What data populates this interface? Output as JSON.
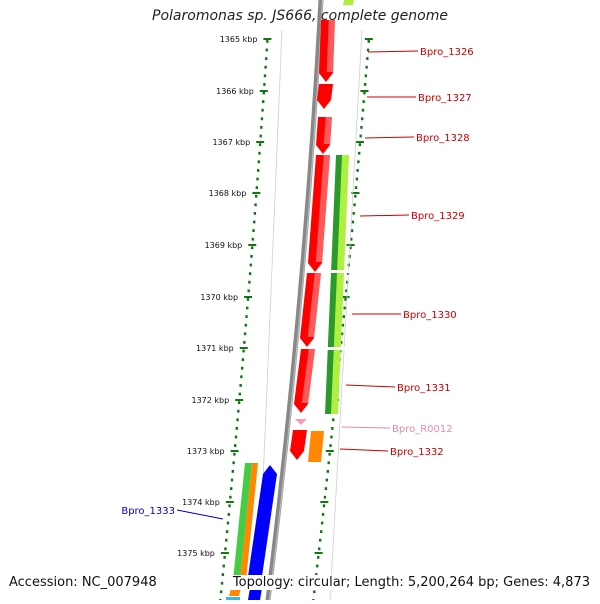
{
  "title": "Polaromonas sp. JS666, complete genome",
  "footer": {
    "accession": "Accession: NC_007948",
    "summary": "Topology: circular; Length: 5,200,264 bp; Genes: 4,873"
  },
  "scale_labels": [
    "1365 kbp",
    "1366 kbp",
    "1367 kbp",
    "1368 kbp",
    "1369 kbp",
    "1370 kbp",
    "1371 kbp",
    "1372 kbp",
    "1373 kbp",
    "1374 kbp",
    "1375 kbp"
  ],
  "gene_labels": [
    {
      "text": "Bpro_1326",
      "color": "#cc0000"
    },
    {
      "text": "Bpro_1327",
      "color": "#cc0000"
    },
    {
      "text": "Bpro_1328",
      "color": "#cc0000"
    },
    {
      "text": "Bpro_1329",
      "color": "#cc0000"
    },
    {
      "text": "Bpro_1330",
      "color": "#cc0000"
    },
    {
      "text": "Bpro_1331",
      "color": "#cc0000"
    },
    {
      "text": "Bpro_R0012",
      "color": "#e88aa8"
    },
    {
      "text": "Bpro_1332",
      "color": "#cc0000"
    },
    {
      "text": "Bpro_1333",
      "color": "#0000cc"
    }
  ],
  "colors": {
    "cds_forward": "#ff0000",
    "cds_reverse": "#0000ff",
    "rna": "#ff99bb",
    "gene_track_dark": "#2a9a2a",
    "gene_track_light": "#aef040",
    "gene_track_green": "#44cc44",
    "orange": "#ff8800",
    "backbone": "#888888",
    "tick_green": "#117711"
  }
}
